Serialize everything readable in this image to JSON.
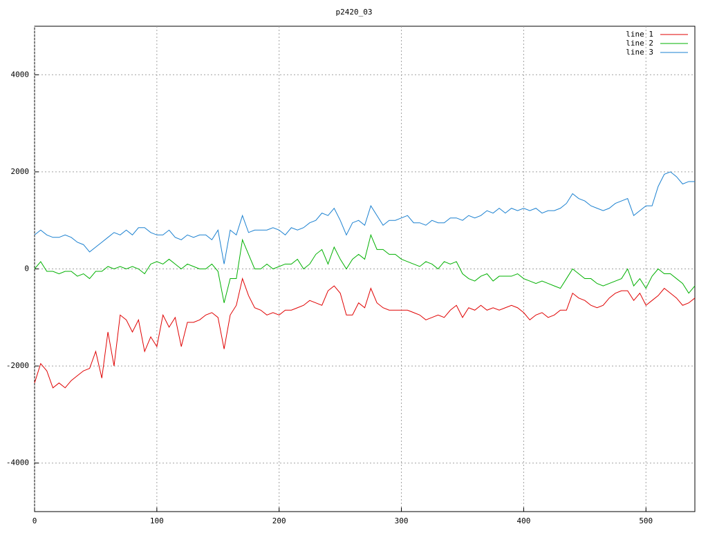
{
  "chart_data": {
    "type": "line",
    "title": "p2420_03",
    "x": [
      0,
      5,
      10,
      15,
      20,
      25,
      30,
      35,
      40,
      45,
      50,
      55,
      60,
      65,
      70,
      75,
      80,
      85,
      90,
      95,
      100,
      105,
      110,
      115,
      120,
      125,
      130,
      135,
      140,
      145,
      150,
      155,
      160,
      165,
      170,
      175,
      180,
      185,
      190,
      195,
      200,
      205,
      210,
      215,
      220,
      225,
      230,
      235,
      240,
      245,
      250,
      255,
      260,
      265,
      270,
      275,
      280,
      285,
      290,
      295,
      300,
      305,
      310,
      315,
      320,
      325,
      330,
      335,
      340,
      345,
      350,
      355,
      360,
      365,
      370,
      375,
      380,
      385,
      390,
      395,
      400,
      405,
      410,
      415,
      420,
      425,
      430,
      435,
      440,
      445,
      450,
      455,
      460,
      465,
      470,
      475,
      480,
      485,
      490,
      495,
      500,
      505,
      510,
      515,
      520,
      525,
      530,
      535,
      540
    ],
    "series": [
      {
        "name": "line 1",
        "color": "#e00000",
        "values": [
          -2350,
          -1950,
          -2100,
          -2450,
          -2350,
          -2450,
          -2300,
          -2200,
          -2100,
          -2050,
          -1700,
          -2250,
          -1300,
          -2000,
          -950,
          -1050,
          -1300,
          -1050,
          -1700,
          -1400,
          -1600,
          -950,
          -1200,
          -1000,
          -1600,
          -1100,
          -1100,
          -1050,
          -950,
          -900,
          -1000,
          -1650,
          -950,
          -750,
          -200,
          -550,
          -800,
          -850,
          -950,
          -900,
          -950,
          -850,
          -850,
          -800,
          -750,
          -650,
          -700,
          -750,
          -450,
          -350,
          -500,
          -950,
          -950,
          -700,
          -800,
          -400,
          -700,
          -800,
          -850,
          -850,
          -850,
          -850,
          -900,
          -950,
          -1050,
          -1000,
          -950,
          -1000,
          -850,
          -750,
          -1000,
          -800,
          -850,
          -750,
          -850,
          -800,
          -850,
          -800,
          -750,
          -800,
          -900,
          -1050,
          -950,
          -900,
          -1000,
          -950,
          -850,
          -850,
          -500,
          -600,
          -650,
          -750,
          -800,
          -750,
          -600,
          -500,
          -450,
          -450,
          -650,
          -500,
          -750,
          -650,
          -550,
          -400,
          -500,
          -600,
          -750,
          -700,
          -600
        ]
      },
      {
        "name": "line 2",
        "color": "#00b000",
        "values": [
          0,
          150,
          -50,
          -50,
          -100,
          -50,
          -50,
          -150,
          -100,
          -200,
          -50,
          -50,
          50,
          0,
          50,
          0,
          50,
          0,
          -100,
          100,
          150,
          100,
          200,
          100,
          0,
          100,
          50,
          0,
          0,
          100,
          -50,
          -700,
          -200,
          -200,
          600,
          300,
          0,
          0,
          100,
          0,
          50,
          100,
          100,
          200,
          0,
          100,
          300,
          400,
          100,
          450,
          200,
          0,
          200,
          300,
          200,
          700,
          400,
          400,
          300,
          300,
          200,
          150,
          100,
          50,
          150,
          100,
          0,
          150,
          100,
          150,
          -100,
          -200,
          -250,
          -150,
          -100,
          -250,
          -150,
          -150,
          -150,
          -100,
          -200,
          -250,
          -300,
          -250,
          -300,
          -350,
          -400,
          -200,
          0,
          -100,
          -200,
          -200,
          -300,
          -350,
          -300,
          -250,
          -200,
          0,
          -350,
          -200,
          -400,
          -150,
          0,
          -100,
          -100,
          -200,
          -300,
          -500,
          -350
        ]
      },
      {
        "name": "line 3",
        "color": "#1a80d0",
        "values": [
          700,
          800,
          700,
          650,
          650,
          700,
          650,
          550,
          500,
          350,
          450,
          550,
          650,
          750,
          700,
          800,
          700,
          850,
          850,
          750,
          700,
          700,
          800,
          650,
          600,
          700,
          650,
          700,
          700,
          600,
          800,
          100,
          800,
          700,
          1100,
          750,
          800,
          800,
          800,
          850,
          800,
          700,
          850,
          800,
          850,
          950,
          1000,
          1150,
          1100,
          1250,
          1000,
          700,
          950,
          1000,
          900,
          1300,
          1100,
          900,
          1000,
          1000,
          1050,
          1100,
          950,
          950,
          900,
          1000,
          950,
          950,
          1050,
          1050,
          1000,
          1100,
          1050,
          1100,
          1200,
          1150,
          1250,
          1150,
          1250,
          1200,
          1250,
          1200,
          1250,
          1150,
          1200,
          1200,
          1250,
          1350,
          1550,
          1450,
          1400,
          1300,
          1250,
          1200,
          1250,
          1350,
          1400,
          1450,
          1100,
          1200,
          1300,
          1300,
          1700,
          1950,
          2000,
          1900,
          1750,
          1800,
          1800
        ]
      }
    ],
    "xlim": [
      0,
      540
    ],
    "ylim": [
      -5000,
      5000
    ],
    "xticks": [
      0,
      100,
      200,
      300,
      400,
      500
    ],
    "yticks": [
      -4000,
      -2000,
      0,
      2000,
      4000
    ],
    "grid": true,
    "legend": "top-right"
  }
}
